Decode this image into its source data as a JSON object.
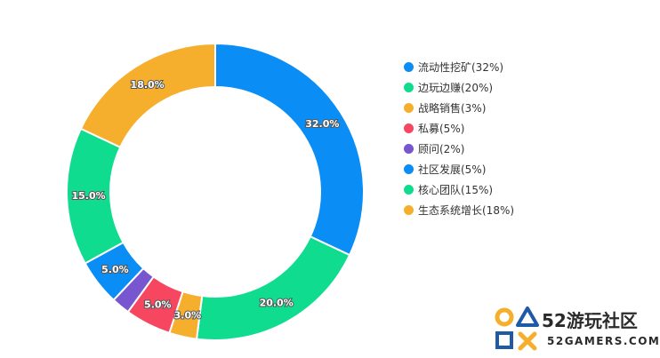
{
  "chart_data": {
    "type": "pie",
    "variant": "donut",
    "categories": [
      "流动性挖矿",
      "边玩边赚",
      "战略销售",
      "私募",
      "顾问",
      "社区发展",
      "核心团队",
      "生态系统增长"
    ],
    "values": [
      32,
      20,
      3,
      5,
      2,
      5,
      15,
      18
    ],
    "slice_labels": [
      "32.0%",
      "20.0%",
      "3.0%",
      "5.0%",
      "",
      "5.0%",
      "15.0%",
      "18.0%"
    ],
    "colors": [
      "#0a8ef5",
      "#0fdc8e",
      "#f6ae2d",
      "#f64660",
      "#7856d0",
      "#0a8ef5",
      "#0fdc8e",
      "#f6ae2d"
    ],
    "legend": {
      "position": "right",
      "entries": [
        "流动性挖矿(32%)",
        "边玩边赚(20%)",
        "战略销售(3%)",
        "私募(5%)",
        "顾问(2%)",
        "社区发展(5%)",
        "核心团队(15%)",
        "生态系统增长(18%)"
      ]
    },
    "title": ""
  },
  "watermark": {
    "name": "52游玩社区",
    "url": "52GAMERS.COM"
  }
}
